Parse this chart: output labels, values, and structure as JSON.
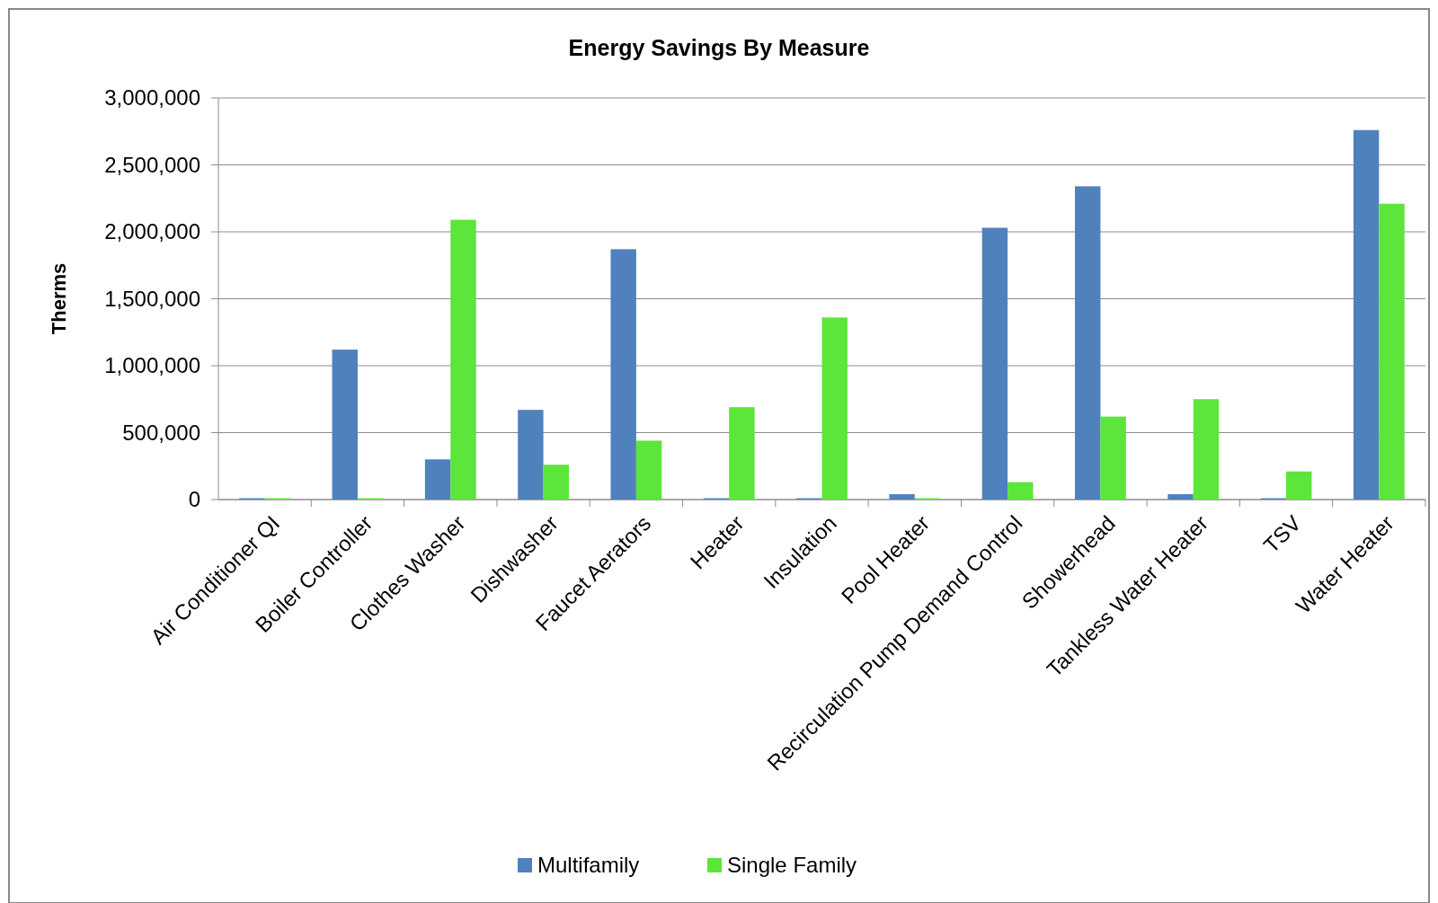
{
  "chart_data": {
    "type": "bar",
    "title": "Energy Savings By Measure",
    "ylabel": "Therms",
    "categories": [
      "Air Conditioner QI",
      "Boiler Controller",
      "Clothes Washer",
      "Dishwasher",
      "Faucet Aerators",
      "Heater",
      "Insulation",
      "Pool Heater",
      "Recirculation Pump Demand Control",
      "Showerhead",
      "Tankless Water Heater",
      "TSV",
      "Water Heater"
    ],
    "series": [
      {
        "name": "Multifamily",
        "color": "#4f81bd",
        "values": [
          10000,
          1120000,
          300000,
          670000,
          1870000,
          10000,
          10000,
          40000,
          2030000,
          2340000,
          40000,
          10000,
          2760000
        ]
      },
      {
        "name": "Single Family",
        "color": "#5ce53a",
        "values": [
          10000,
          10000,
          2090000,
          260000,
          440000,
          690000,
          1360000,
          10000,
          130000,
          620000,
          750000,
          210000,
          2210000
        ]
      }
    ],
    "ylim": [
      0,
      3000000
    ],
    "yticks": [
      {
        "value": 0,
        "label": "0"
      },
      {
        "value": 500000,
        "label": "500,000"
      },
      {
        "value": 1000000,
        "label": "1,000,000"
      },
      {
        "value": 1500000,
        "label": "1,500,000"
      },
      {
        "value": 2000000,
        "label": "2,000,000"
      },
      {
        "value": 2500000,
        "label": "2,500,000"
      },
      {
        "value": 3000000,
        "label": "3,000,000"
      }
    ],
    "grid": "y",
    "legend": "bottom"
  }
}
